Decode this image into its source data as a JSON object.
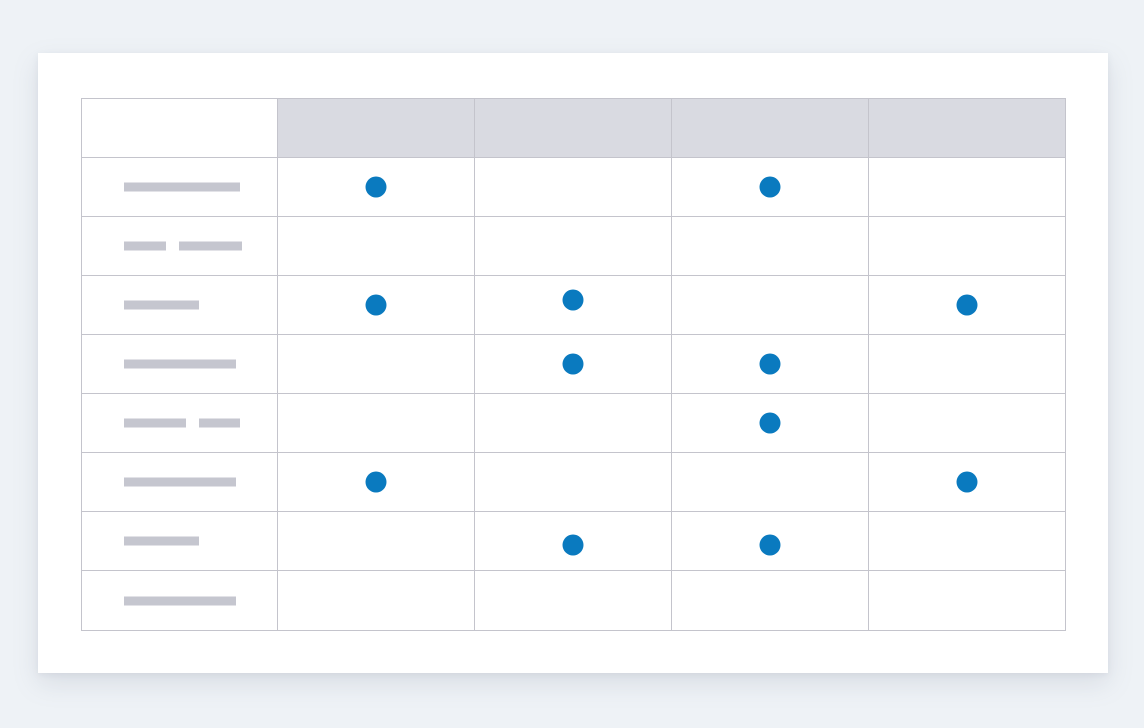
{
  "matrix": {
    "column_headers": [
      "",
      "",
      "",
      ""
    ],
    "rows": [
      {
        "label_bars": [
          116
        ],
        "marks": [
          true,
          false,
          true,
          false
        ]
      },
      {
        "label_bars": [
          42,
          63
        ],
        "marks": [
          false,
          false,
          false,
          false
        ]
      },
      {
        "label_bars": [
          75
        ],
        "marks": [
          true,
          true,
          false,
          true
        ]
      },
      {
        "label_bars": [
          112
        ],
        "marks": [
          false,
          true,
          true,
          false
        ]
      },
      {
        "label_bars": [
          62,
          41
        ],
        "marks": [
          false,
          false,
          true,
          false
        ]
      },
      {
        "label_bars": [
          112
        ],
        "marks": [
          true,
          false,
          false,
          true
        ]
      },
      {
        "label_bars": [
          75
        ],
        "marks": [
          false,
          true,
          true,
          false
        ]
      },
      {
        "label_bars": [
          112
        ],
        "marks": [
          false,
          false,
          false,
          false
        ]
      }
    ],
    "colors": {
      "dot": "#0a7abf",
      "header_fill": "#d9dae1",
      "placeholder_bar": "#c5c6cf",
      "grid_line": "#c4c4cc"
    }
  }
}
